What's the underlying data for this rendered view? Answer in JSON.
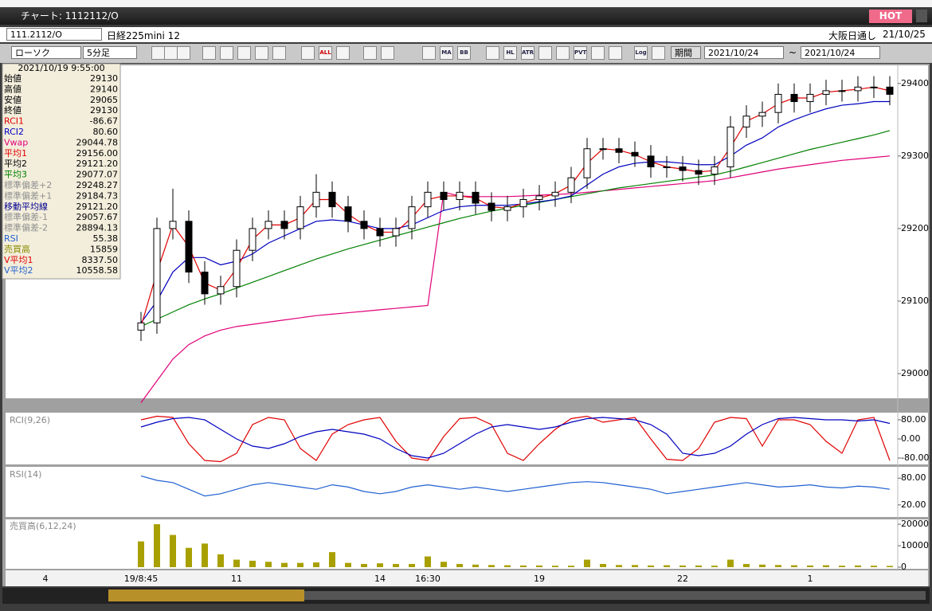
{
  "window": {
    "title": "チャート: 1112112/O",
    "badge": "HOT"
  },
  "header": {
    "symbol": "111.2112/O",
    "name": "日経225mini 12",
    "session": "大阪日通し",
    "date": "21/10/25"
  },
  "toolbar": {
    "chart_style": "ローソク",
    "interval": "5分足",
    "icon_labels": [
      "ALL",
      "MA",
      "BB",
      "HL",
      "ATR",
      "PVT",
      "Log"
    ],
    "period": "期間",
    "from": "2021/10/24",
    "sep": "~",
    "to": "2021/10/24"
  },
  "info_panel": {
    "datetime": "2021/10/19 9:55:00",
    "rows": [
      {
        "label": "始値",
        "value": "29130",
        "color": "#000000"
      },
      {
        "label": "高値",
        "value": "29140",
        "color": "#000000"
      },
      {
        "label": "安値",
        "value": "29065",
        "color": "#000000"
      },
      {
        "label": "終値",
        "value": "29130",
        "color": "#000000"
      },
      {
        "label": "RCI1",
        "value": "-86.67",
        "color": "#e00000"
      },
      {
        "label": "RCI2",
        "value": "80.60",
        "color": "#0000c0"
      },
      {
        "label": "Vwap",
        "value": "29044.78",
        "color": "#e0007a"
      },
      {
        "label": "平均1",
        "value": "29156.00",
        "color": "#e00000"
      },
      {
        "label": "平均2",
        "value": "29121.20",
        "color": "#000000"
      },
      {
        "label": "平均3",
        "value": "29077.07",
        "color": "#008000"
      },
      {
        "label": "標準偏差+2",
        "value": "29248.27",
        "color": "#909090"
      },
      {
        "label": "標準偏差+1",
        "value": "29184.73",
        "color": "#909090"
      },
      {
        "label": "移動平均線",
        "value": "29121.20",
        "color": "#000090"
      },
      {
        "label": "標準偏差-1",
        "value": "29057.67",
        "color": "#909090"
      },
      {
        "label": "標準偏差-2",
        "value": "28894.13",
        "color": "#909090"
      },
      {
        "label": "RSI",
        "value": "55.38",
        "color": "#2060d0"
      },
      {
        "label": "売買高",
        "value": "15859",
        "color": "#8a8a00"
      },
      {
        "label": "V平均1",
        "value": "8337.50",
        "color": "#e00000"
      },
      {
        "label": "V平均2",
        "value": "10558.58",
        "color": "#2060d0"
      }
    ]
  },
  "chart_data": [
    {
      "type": "candlestick",
      "categories": [
        null,
        null,
        "4",
        null,
        null,
        null,
        null,
        null,
        "19/8:45",
        null,
        null,
        null,
        null,
        null,
        "11",
        null,
        null,
        null,
        null,
        null,
        null,
        null,
        null,
        "14",
        null,
        null,
        "16:30",
        null,
        null,
        null,
        null,
        null,
        null,
        "19",
        null,
        null,
        null,
        null,
        null,
        null,
        null,
        null,
        "22",
        null,
        null,
        null,
        null,
        null,
        null,
        null,
        "1",
        null,
        null,
        null,
        null,
        null
      ],
      "open": [
        null,
        null,
        null,
        null,
        null,
        null,
        null,
        null,
        29060,
        29070,
        29200,
        29210,
        29140,
        29110,
        29120,
        29170,
        29200,
        29210,
        29200,
        29230,
        29250,
        29230,
        29210,
        29200,
        29190,
        29200,
        29230,
        29250,
        29240,
        29250,
        29235,
        29225,
        29230,
        29240,
        29245,
        29250,
        29270,
        29310,
        29310,
        29305,
        29300,
        29285,
        29285,
        29280,
        29275,
        29285,
        29340,
        29355,
        29360,
        29385,
        29375,
        29385,
        29390,
        29390,
        29395,
        29395
      ],
      "high": [
        null,
        null,
        null,
        null,
        null,
        null,
        null,
        null,
        29085,
        29215,
        29255,
        29225,
        29155,
        29135,
        29185,
        29215,
        29225,
        29225,
        29245,
        29275,
        29265,
        29245,
        29225,
        29215,
        29215,
        29245,
        29265,
        29265,
        29265,
        29265,
        29250,
        29245,
        29255,
        29260,
        29265,
        29285,
        29325,
        29325,
        29325,
        29320,
        29315,
        29300,
        29300,
        29295,
        29300,
        29355,
        29370,
        29375,
        29400,
        29400,
        29400,
        29405,
        29405,
        29410,
        29410,
        29410
      ],
      "low": [
        null,
        null,
        null,
        null,
        null,
        null,
        null,
        null,
        29045,
        29055,
        29185,
        29125,
        29095,
        29095,
        29105,
        29155,
        29185,
        29185,
        29185,
        29215,
        29215,
        29195,
        29185,
        29175,
        29175,
        29185,
        29215,
        29225,
        29225,
        29220,
        29210,
        29210,
        29215,
        29225,
        29230,
        29235,
        29255,
        29295,
        29290,
        29285,
        29270,
        29270,
        29265,
        29260,
        29260,
        29270,
        29325,
        29340,
        29345,
        29360,
        29360,
        29370,
        29375,
        29375,
        29380,
        29370
      ],
      "close": [
        null,
        null,
        null,
        null,
        null,
        null,
        null,
        null,
        29070,
        29200,
        29210,
        29140,
        29110,
        29120,
        29170,
        29200,
        29210,
        29200,
        29230,
        29250,
        29230,
        29210,
        29200,
        29190,
        29200,
        29230,
        29250,
        29240,
        29250,
        29235,
        29225,
        29230,
        29240,
        29245,
        29250,
        29270,
        29310,
        29310,
        29305,
        29300,
        29285,
        29285,
        29280,
        29275,
        29285,
        29340,
        29355,
        29360,
        29385,
        29375,
        29385,
        29390,
        29390,
        29395,
        29395,
        29385
      ],
      "up_color": "#ffffff",
      "down_color": "#000000",
      "series": [
        {
          "color": "#e0007a",
          "values": [
            null,
            null,
            null,
            null,
            null,
            null,
            null,
            null,
            28960,
            28990,
            29020,
            29040,
            29052,
            29060,
            29065,
            29068,
            29071,
            29074,
            29077,
            29080,
            29082,
            29084,
            29086,
            29088,
            29090,
            29092,
            29094,
            29250,
            29245,
            29244,
            29244,
            29244,
            29245,
            29246,
            29247,
            29248,
            29250,
            29252,
            29254,
            29256,
            29258,
            29260,
            29262,
            29264,
            29266,
            29270,
            29274,
            29278,
            29282,
            29285,
            29288,
            29291,
            29294,
            29296,
            29298,
            29300
          ]
        },
        {
          "color": "#008000",
          "values": [
            null,
            null,
            null,
            null,
            null,
            null,
            null,
            null,
            29065,
            29075,
            29085,
            29095,
            29103,
            29110,
            29118,
            29126,
            29134,
            29142,
            29150,
            29158,
            29165,
            29172,
            29178,
            29184,
            29190,
            29196,
            29202,
            29208,
            29214,
            29219,
            29224,
            29228,
            29232,
            29236,
            29240,
            29244,
            29248,
            29252,
            29256,
            29259,
            29262,
            29265,
            29268,
            29271,
            29274,
            29279,
            29285,
            29291,
            29297,
            29303,
            29309,
            29314,
            29319,
            29324,
            29329,
            29335
          ]
        },
        {
          "color": "#0000c0",
          "values": [
            null,
            null,
            null,
            null,
            null,
            null,
            null,
            null,
            29070,
            29100,
            29140,
            29160,
            29160,
            29150,
            29155,
            29165,
            29180,
            29190,
            29200,
            29210,
            29212,
            29210,
            29205,
            29200,
            29200,
            29205,
            29215,
            29225,
            29230,
            29232,
            29232,
            29232,
            29234,
            29237,
            29240,
            29245,
            29260,
            29275,
            29285,
            29290,
            29292,
            29292,
            29290,
            29288,
            29288,
            29300,
            29315,
            29325,
            29340,
            29350,
            29358,
            29365,
            29370,
            29372,
            29375,
            29375
          ]
        },
        {
          "color": "#e00000",
          "values": [
            null,
            null,
            null,
            null,
            null,
            null,
            null,
            null,
            29065,
            29140,
            29205,
            29175,
            29125,
            29115,
            29145,
            29185,
            29205,
            29205,
            29215,
            29240,
            29240,
            29220,
            29205,
            29195,
            29195,
            29215,
            29240,
            29245,
            29245,
            29242,
            29230,
            29228,
            29235,
            29242,
            29248,
            29260,
            29290,
            29310,
            29308,
            29302,
            29292,
            29285,
            29282,
            29278,
            29280,
            29312,
            29348,
            29358,
            29372,
            29380,
            29380,
            29388,
            29390,
            29392,
            29395,
            29390
          ]
        }
      ],
      "ylim": [
        28966,
        29425
      ],
      "yticks": [
        29000,
        29100,
        29200,
        29300,
        29400
      ]
    },
    {
      "type": "line",
      "label": "RCI(9,26)",
      "series": [
        {
          "color": "#e00000",
          "values": [
            null,
            null,
            null,
            null,
            null,
            null,
            null,
            null,
            80,
            95,
            90,
            -20,
            -90,
            -95,
            -60,
            60,
            90,
            80,
            -40,
            -90,
            20,
            60,
            80,
            90,
            -10,
            -80,
            -90,
            10,
            85,
            90,
            60,
            -60,
            -90,
            -20,
            40,
            85,
            95,
            70,
            80,
            90,
            0,
            -85,
            -90,
            -40,
            70,
            90,
            85,
            -30,
            80,
            80,
            60,
            -10,
            -60,
            80,
            90,
            -90
          ]
        },
        {
          "color": "#0000c0",
          "values": [
            null,
            null,
            null,
            null,
            null,
            null,
            null,
            null,
            50,
            70,
            85,
            90,
            80,
            40,
            0,
            -30,
            -40,
            -20,
            10,
            30,
            40,
            30,
            20,
            0,
            -40,
            -70,
            -80,
            -60,
            -20,
            20,
            50,
            60,
            50,
            40,
            50,
            70,
            85,
            90,
            85,
            80,
            60,
            20,
            -60,
            -70,
            -60,
            -30,
            20,
            60,
            85,
            90,
            85,
            80,
            80,
            75,
            80,
            65
          ]
        }
      ],
      "ylim": [
        -100,
        100
      ],
      "yticks": [
        {
          "value": 80,
          "label": "80.00"
        },
        {
          "value": 0,
          "label": "0.00"
        },
        {
          "value": -80,
          "label": "-80.00"
        }
      ]
    },
    {
      "type": "line",
      "label": "RSI(14)",
      "series": [
        {
          "color": "#2060d0",
          "values": [
            null,
            null,
            null,
            null,
            null,
            null,
            null,
            null,
            85,
            75,
            70,
            55,
            40,
            45,
            55,
            65,
            70,
            65,
            60,
            55,
            65,
            60,
            50,
            45,
            50,
            60,
            65,
            60,
            55,
            60,
            55,
            50,
            55,
            60,
            65,
            70,
            72,
            70,
            65,
            60,
            55,
            45,
            50,
            55,
            60,
            65,
            70,
            65,
            60,
            62,
            65,
            60,
            58,
            62,
            60,
            55
          ]
        }
      ],
      "ylim": [
        0,
        100
      ],
      "yticks": [
        {
          "value": 80,
          "label": "80.00"
        },
        {
          "value": 20,
          "label": "20.00"
        }
      ]
    },
    {
      "type": "bar",
      "label": "売買高(6,12,24)",
      "series": [
        {
          "color": "#a8a000",
          "values": [
            null,
            null,
            null,
            null,
            null,
            null,
            null,
            null,
            12000,
            20000,
            15000,
            9000,
            11000,
            6000,
            3500,
            3000,
            2500,
            2000,
            2000,
            2200,
            7000,
            2000,
            1500,
            1800,
            1500,
            1500,
            5000,
            2500,
            1500,
            1200,
            1000,
            900,
            800,
            800,
            700,
            700,
            3500,
            1500,
            1000,
            1000,
            800,
            900,
            800,
            800,
            700,
            3500,
            1500,
            1200,
            1000,
            900,
            800,
            900,
            700,
            800,
            700,
            600
          ]
        }
      ],
      "ylim": [
        0,
        21500
      ],
      "yticks": [
        20000,
        10000,
        0
      ]
    }
  ]
}
